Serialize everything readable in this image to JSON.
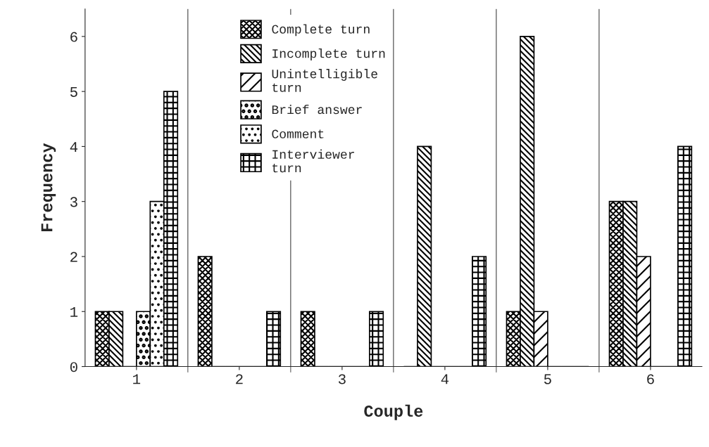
{
  "chart_data": {
    "type": "bar",
    "xlabel": "Couple",
    "ylabel": "Frequency",
    "categories": [
      "1",
      "2",
      "3",
      "4",
      "5",
      "6"
    ],
    "series": [
      {
        "name": "Complete turn",
        "color": "#000000",
        "values": [
          1,
          2,
          1,
          0,
          1,
          3
        ]
      },
      {
        "name": "Incomplete turn",
        "color": "#000000",
        "values": [
          1,
          0,
          0,
          4,
          6,
          3
        ]
      },
      {
        "name": "Unintelligible\nturn",
        "color": "#000000",
        "values": [
          0,
          0,
          0,
          0,
          1,
          2
        ]
      },
      {
        "name": "Brief answer",
        "color": "#000000",
        "values": [
          1,
          0,
          0,
          0,
          0,
          0
        ]
      },
      {
        "name": "Comment",
        "color": "#000000",
        "values": [
          3,
          0,
          0,
          0,
          0,
          0
        ]
      },
      {
        "name": "Interviewer\nturn",
        "color": "#000000",
        "values": [
          5,
          1,
          1,
          2,
          0,
          4
        ]
      }
    ],
    "ylim": [
      0,
      6.5
    ],
    "yticks": [
      0,
      1,
      2,
      3,
      4,
      5,
      6
    ],
    "grid": "x",
    "legend": "top"
  }
}
